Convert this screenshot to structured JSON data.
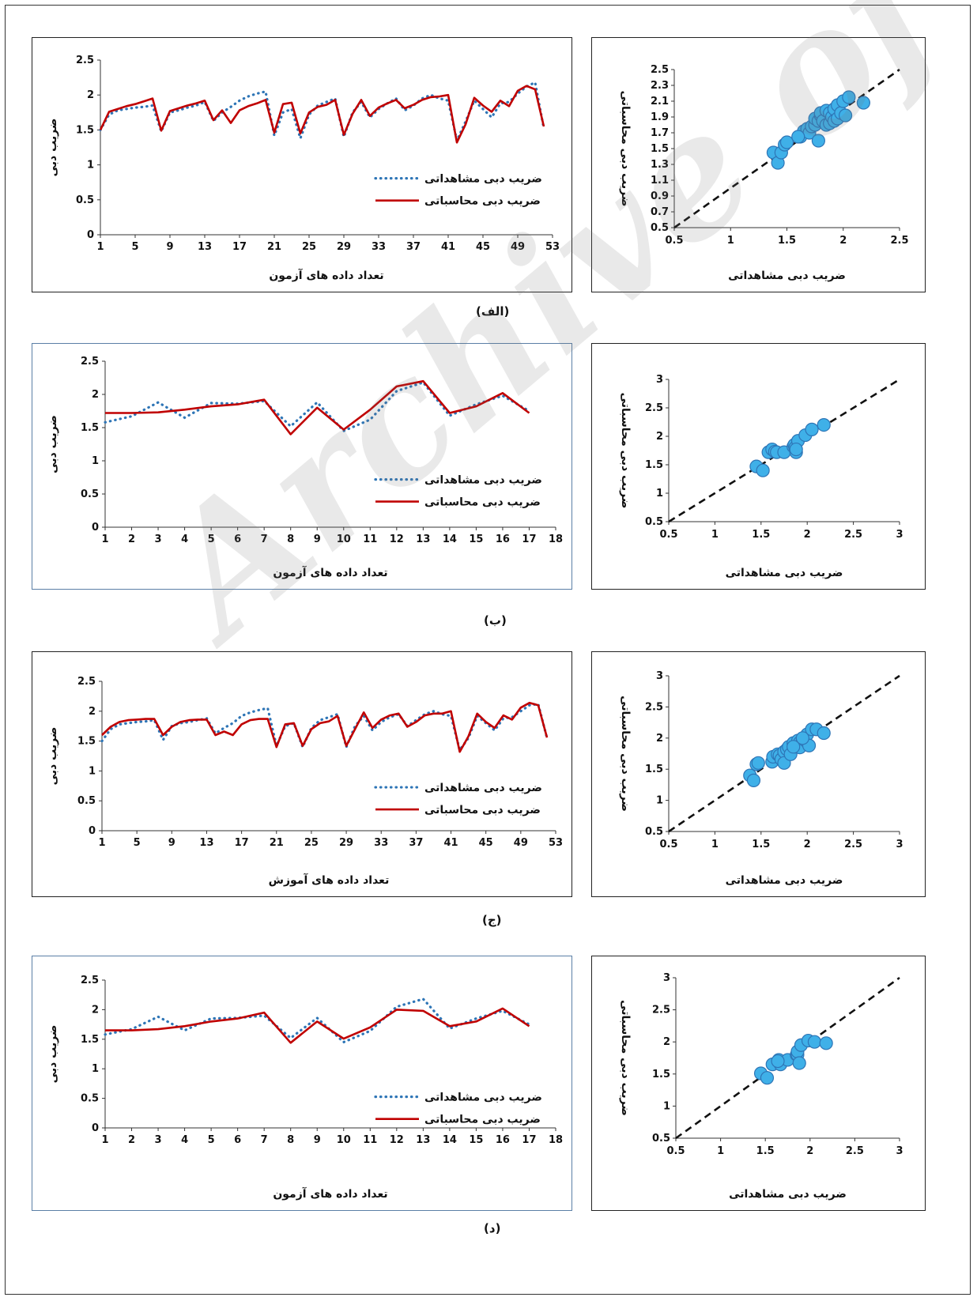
{
  "watermark": "Archive of SID",
  "captions": [
    "(الف)",
    "(ب)",
    "(ج)",
    "(د)"
  ],
  "colors": {
    "observed": "#2e75b6",
    "computed": "#c00000",
    "marker_fill": "#3fb0e8",
    "marker_edge": "#2e75b6"
  },
  "chart_data": [
    {
      "type": "line",
      "xlabel": "تعداد داده های آزمون",
      "ylabel": "ضریب دبی",
      "xlim": [
        1,
        53
      ],
      "ylim": [
        0,
        2.5
      ],
      "xticks": [
        1,
        5,
        9,
        13,
        17,
        21,
        25,
        29,
        33,
        37,
        41,
        45,
        49,
        53
      ],
      "xtick_labels": [
        "1",
        "5",
        "9",
        "13",
        "17",
        "21",
        "25",
        "29",
        "33",
        "37",
        "41",
        "45",
        "49",
        "53"
      ],
      "yticks": [
        0,
        0.5,
        1,
        1.5,
        2,
        2.5
      ],
      "ytick_labels": [
        "0",
        "0.5",
        "1",
        "1.5",
        "2",
        "2.5"
      ],
      "legend": "right-middle",
      "series": [
        {
          "name": "ضریب دبی مشاهداتی",
          "style": "dotted",
          "values": [
            1.5,
            1.72,
            1.78,
            1.8,
            1.82,
            1.83,
            1.85,
            1.48,
            1.75,
            1.78,
            1.82,
            1.85,
            1.9,
            1.63,
            1.75,
            1.83,
            1.92,
            1.98,
            2.02,
            2.05,
            1.42,
            1.75,
            1.8,
            1.38,
            1.72,
            1.85,
            1.9,
            1.95,
            1.4,
            1.75,
            1.9,
            1.68,
            1.8,
            1.88,
            1.95,
            1.78,
            1.85,
            1.95,
            2.0,
            1.95,
            1.92,
            1.35,
            1.62,
            1.92,
            1.8,
            1.68,
            1.88,
            1.9,
            2.02,
            2.12,
            2.18,
            1.52
          ]
        },
        {
          "name": "ضریب دبی محاسباتی",
          "style": "solid",
          "values": [
            1.5,
            1.76,
            1.8,
            1.84,
            1.87,
            1.91,
            1.95,
            1.49,
            1.77,
            1.81,
            1.85,
            1.88,
            1.92,
            1.64,
            1.78,
            1.6,
            1.78,
            1.84,
            1.88,
            1.93,
            1.46,
            1.87,
            1.89,
            1.45,
            1.75,
            1.83,
            1.86,
            1.93,
            1.43,
            1.73,
            1.93,
            1.7,
            1.82,
            1.88,
            1.93,
            1.81,
            1.86,
            1.93,
            1.97,
            1.98,
            2.0,
            1.32,
            1.58,
            1.96,
            1.85,
            1.76,
            1.92,
            1.84,
            2.06,
            2.13,
            2.08,
            1.55
          ]
        }
      ]
    },
    {
      "type": "scatter",
      "xlabel": "ضریب دبی مشاهداتی",
      "ylabel": "ضریب دبی محاسباتی",
      "xlim": [
        0.5,
        2.5
      ],
      "ylim": [
        0.5,
        2.5
      ],
      "xticks": [
        0.5,
        1,
        1.5,
        2,
        2.5
      ],
      "xtick_labels": [
        "0.5",
        "1",
        "1.5",
        "2",
        "2.5"
      ],
      "yticks": [
        0.5,
        0.7,
        0.9,
        1.1,
        1.3,
        1.5,
        1.7,
        1.9,
        2.1,
        2.3,
        2.5
      ],
      "ytick_labels": [
        "0.5",
        "0.7",
        "0.9",
        "1.1",
        "1.3",
        "1.5",
        "1.7",
        "1.9",
        "2.1",
        "2.3",
        "2.5"
      ],
      "identity_line": true,
      "points": [
        [
          1.38,
          1.45
        ],
        [
          1.42,
          1.32
        ],
        [
          1.45,
          1.45
        ],
        [
          1.48,
          1.55
        ],
        [
          1.5,
          1.58
        ],
        [
          1.62,
          1.65
        ],
        [
          1.65,
          1.72
        ],
        [
          1.68,
          1.75
        ],
        [
          1.7,
          1.7
        ],
        [
          1.72,
          1.78
        ],
        [
          1.75,
          1.8
        ],
        [
          1.75,
          1.88
        ],
        [
          1.78,
          1.6
        ],
        [
          1.78,
          1.85
        ],
        [
          1.8,
          1.92
        ],
        [
          1.8,
          1.95
        ],
        [
          1.82,
          1.85
        ],
        [
          1.85,
          1.8
        ],
        [
          1.85,
          1.98
        ],
        [
          1.88,
          1.95
        ],
        [
          1.88,
          1.82
        ],
        [
          1.9,
          1.9
        ],
        [
          1.92,
          2.0
        ],
        [
          1.92,
          1.85
        ],
        [
          1.95,
          1.88
        ],
        [
          1.95,
          2.05
        ],
        [
          1.98,
          1.95
        ],
        [
          2.0,
          2.1
        ],
        [
          2.02,
          1.92
        ],
        [
          2.05,
          2.15
        ],
        [
          2.18,
          2.08
        ],
        [
          1.6,
          1.65
        ]
      ]
    },
    {
      "type": "line",
      "xlabel": "تعداد داده های آزمون",
      "ylabel": "ضریب دبی",
      "xlim": [
        1,
        18
      ],
      "ylim": [
        0,
        2.5
      ],
      "xticks": [
        1,
        2,
        3,
        4,
        5,
        6,
        7,
        8,
        9,
        10,
        11,
        12,
        13,
        14,
        15,
        16,
        17,
        18
      ],
      "xtick_labels": [
        "1",
        "2",
        "3",
        "4",
        "5",
        "6",
        "7",
        "8",
        "9",
        "10",
        "11",
        "12",
        "13",
        "14",
        "15",
        "16",
        "17",
        "18"
      ],
      "yticks": [
        0,
        0.5,
        1,
        1.5,
        2,
        2.5
      ],
      "ytick_labels": [
        "0",
        "0.5",
        "1",
        "1.5",
        "2",
        "2.5"
      ],
      "legend": "right-middle",
      "series": [
        {
          "name": "ضریب دبی مشاهداتی",
          "style": "dotted",
          "values": [
            1.58,
            1.67,
            1.88,
            1.65,
            1.87,
            1.86,
            1.9,
            1.52,
            1.88,
            1.45,
            1.62,
            2.05,
            2.18,
            1.68,
            1.85,
            1.98,
            1.75
          ]
        },
        {
          "name": "ضریب دبی محاسباتی",
          "style": "solid",
          "values": [
            1.72,
            1.72,
            1.73,
            1.77,
            1.82,
            1.85,
            1.92,
            1.4,
            1.8,
            1.47,
            1.77,
            2.12,
            2.2,
            1.72,
            1.82,
            2.02,
            1.72
          ]
        }
      ]
    },
    {
      "type": "scatter",
      "xlabel": "ضریب دبی مشاهداتی",
      "ylabel": "ضریب دبی محاسباتی",
      "xlim": [
        0.5,
        3
      ],
      "ylim": [
        0.5,
        3
      ],
      "xticks": [
        0.5,
        1,
        1.5,
        2,
        2.5,
        3
      ],
      "xtick_labels": [
        "0.5",
        "1",
        "1.5",
        "2",
        "2.5",
        "3"
      ],
      "yticks": [
        0.5,
        1,
        1.5,
        2,
        2.5,
        3
      ],
      "ytick_labels": [
        "0.5",
        "1",
        "1.5",
        "2",
        "2.5",
        "3"
      ],
      "identity_line": true,
      "points": [
        [
          1.45,
          1.47
        ],
        [
          1.52,
          1.4
        ],
        [
          1.58,
          1.72
        ],
        [
          1.62,
          1.77
        ],
        [
          1.65,
          1.73
        ],
        [
          1.67,
          1.72
        ],
        [
          1.75,
          1.72
        ],
        [
          1.85,
          1.82
        ],
        [
          1.86,
          1.85
        ],
        [
          1.87,
          1.8
        ],
        [
          1.88,
          1.72
        ],
        [
          1.9,
          1.92
        ],
        [
          1.98,
          2.02
        ],
        [
          2.05,
          2.12
        ],
        [
          2.18,
          2.2
        ],
        [
          1.88,
          1.77
        ]
      ]
    },
    {
      "type": "line",
      "xlabel": "تعداد داده های آموزش",
      "ylabel": "ضریب دبی",
      "xlim": [
        1,
        53
      ],
      "ylim": [
        0,
        2.5
      ],
      "xticks": [
        1,
        5,
        9,
        13,
        17,
        21,
        25,
        29,
        33,
        37,
        41,
        45,
        49,
        53
      ],
      "xtick_labels": [
        "1",
        "5",
        "9",
        "13",
        "17",
        "21",
        "25",
        "29",
        "33",
        "37",
        "41",
        "45",
        "49",
        "53"
      ],
      "yticks": [
        0,
        0.5,
        1,
        1.5,
        2,
        2.5
      ],
      "ytick_labels": [
        "0",
        "0.5",
        "1",
        "1.5",
        "2",
        "2.5"
      ],
      "legend": "right-middle",
      "series": [
        {
          "name": "ضریب دبی مشاهداتی",
          "style": "dotted",
          "values": [
            1.5,
            1.7,
            1.78,
            1.8,
            1.82,
            1.83,
            1.85,
            1.52,
            1.75,
            1.8,
            1.82,
            1.85,
            1.88,
            1.63,
            1.72,
            1.8,
            1.92,
            1.98,
            2.02,
            2.05,
            1.42,
            1.75,
            1.8,
            1.4,
            1.72,
            1.85,
            1.9,
            1.95,
            1.4,
            1.75,
            1.92,
            1.68,
            1.82,
            1.9,
            1.95,
            1.75,
            1.85,
            1.95,
            2.0,
            1.95,
            1.92,
            1.35,
            1.55,
            1.92,
            1.8,
            1.68,
            1.88,
            1.9,
            2.0,
            2.1,
            2.12,
            1.55
          ]
        },
        {
          "name": "ضریب دبی محاسباتی",
          "style": "solid",
          "values": [
            1.6,
            1.74,
            1.82,
            1.85,
            1.86,
            1.87,
            1.87,
            1.6,
            1.74,
            1.82,
            1.85,
            1.86,
            1.86,
            1.6,
            1.66,
            1.6,
            1.78,
            1.85,
            1.87,
            1.87,
            1.4,
            1.78,
            1.8,
            1.42,
            1.7,
            1.8,
            1.83,
            1.92,
            1.42,
            1.7,
            1.98,
            1.72,
            1.86,
            1.93,
            1.96,
            1.74,
            1.82,
            1.93,
            1.96,
            1.96,
            2.0,
            1.32,
            1.58,
            1.96,
            1.82,
            1.72,
            1.93,
            1.86,
            2.06,
            2.14,
            2.1,
            1.56
          ]
        }
      ]
    },
    {
      "type": "scatter",
      "xlabel": "ضریب دبی مشاهداتی",
      "ylabel": "ضریب دبی محاسباتی",
      "xlim": [
        0.5,
        3
      ],
      "ylim": [
        0.5,
        3
      ],
      "xticks": [
        0.5,
        1,
        1.5,
        2,
        2.5,
        3
      ],
      "xtick_labels": [
        "0.5",
        "1",
        "1.5",
        "2",
        "2.5",
        "3"
      ],
      "yticks": [
        0.5,
        1,
        1.5,
        2,
        2.5,
        3
      ],
      "ytick_labels": [
        "0.5",
        "1",
        "1.5",
        "2",
        "2.5",
        "3"
      ],
      "identity_line": true,
      "points": [
        [
          1.38,
          1.4
        ],
        [
          1.42,
          1.32
        ],
        [
          1.45,
          1.58
        ],
        [
          1.47,
          1.6
        ],
        [
          1.62,
          1.62
        ],
        [
          1.63,
          1.7
        ],
        [
          1.68,
          1.74
        ],
        [
          1.7,
          1.72
        ],
        [
          1.72,
          1.66
        ],
        [
          1.75,
          1.78
        ],
        [
          1.75,
          1.6
        ],
        [
          1.78,
          1.82
        ],
        [
          1.8,
          1.86
        ],
        [
          1.82,
          1.74
        ],
        [
          1.85,
          1.92
        ],
        [
          1.88,
          1.86
        ],
        [
          1.9,
          1.96
        ],
        [
          1.92,
          1.93
        ],
        [
          1.95,
          1.96
        ],
        [
          1.92,
          1.85
        ],
        [
          1.98,
          1.96
        ],
        [
          2.0,
          2.06
        ],
        [
          2.02,
          1.88
        ],
        [
          2.05,
          2.14
        ],
        [
          2.1,
          2.14
        ],
        [
          2.18,
          2.08
        ],
        [
          1.85,
          1.86
        ],
        [
          1.95,
          2.0
        ]
      ]
    },
    {
      "type": "line",
      "xlabel": "تعداد داده های آزمون",
      "ylabel": "ضریب دبی",
      "xlim": [
        1,
        18
      ],
      "ylim": [
        0,
        2.5
      ],
      "xticks": [
        1,
        2,
        3,
        4,
        5,
        6,
        7,
        8,
        9,
        10,
        11,
        12,
        13,
        14,
        15,
        16,
        17,
        18
      ],
      "xtick_labels": [
        "1",
        "2",
        "3",
        "4",
        "5",
        "6",
        "7",
        "8",
        "9",
        "10",
        "11",
        "12",
        "13",
        "14",
        "15",
        "16",
        "17",
        "18"
      ],
      "yticks": [
        0,
        0.5,
        1,
        1.5,
        2,
        2.5
      ],
      "ytick_labels": [
        "0",
        "0.5",
        "1",
        "1.5",
        "2",
        "2.5"
      ],
      "legend": "right-middle",
      "series": [
        {
          "name": "ضریب دبی مشاهداتی",
          "style": "dotted",
          "values": [
            1.58,
            1.67,
            1.88,
            1.65,
            1.85,
            1.86,
            1.9,
            1.52,
            1.86,
            1.45,
            1.64,
            2.05,
            2.18,
            1.68,
            1.85,
            1.98,
            1.75
          ]
        },
        {
          "name": "ضریب دبی محاسباتی",
          "style": "solid",
          "values": [
            1.65,
            1.65,
            1.67,
            1.72,
            1.8,
            1.85,
            1.95,
            1.44,
            1.8,
            1.51,
            1.7,
            2.0,
            1.98,
            1.72,
            1.8,
            2.02,
            1.72
          ]
        }
      ]
    },
    {
      "type": "scatter",
      "xlabel": "ضریب دبی مشاهداتی",
      "ylabel": "ضریب دبی محاسباتی",
      "xlim": [
        0.5,
        3
      ],
      "ylim": [
        0.5,
        3
      ],
      "xticks": [
        0.5,
        1,
        1.5,
        2,
        2.5,
        3
      ],
      "xtick_labels": [
        "0.5",
        "1",
        "1.5",
        "2",
        "2.5",
        "3"
      ],
      "yticks": [
        0.5,
        1,
        1.5,
        2,
        2.5,
        3
      ],
      "ytick_labels": [
        "0.5",
        "1",
        "1.5",
        "2",
        "2.5",
        "3"
      ],
      "identity_line": true,
      "points": [
        [
          1.45,
          1.51
        ],
        [
          1.52,
          1.44
        ],
        [
          1.58,
          1.65
        ],
        [
          1.65,
          1.72
        ],
        [
          1.67,
          1.65
        ],
        [
          1.75,
          1.72
        ],
        [
          1.85,
          1.8
        ],
        [
          1.86,
          1.8
        ],
        [
          1.86,
          1.85
        ],
        [
          1.88,
          1.67
        ],
        [
          1.9,
          1.95
        ],
        [
          1.98,
          2.02
        ],
        [
          2.05,
          2.0
        ],
        [
          2.18,
          1.98
        ],
        [
          1.64,
          1.7
        ]
      ]
    }
  ]
}
